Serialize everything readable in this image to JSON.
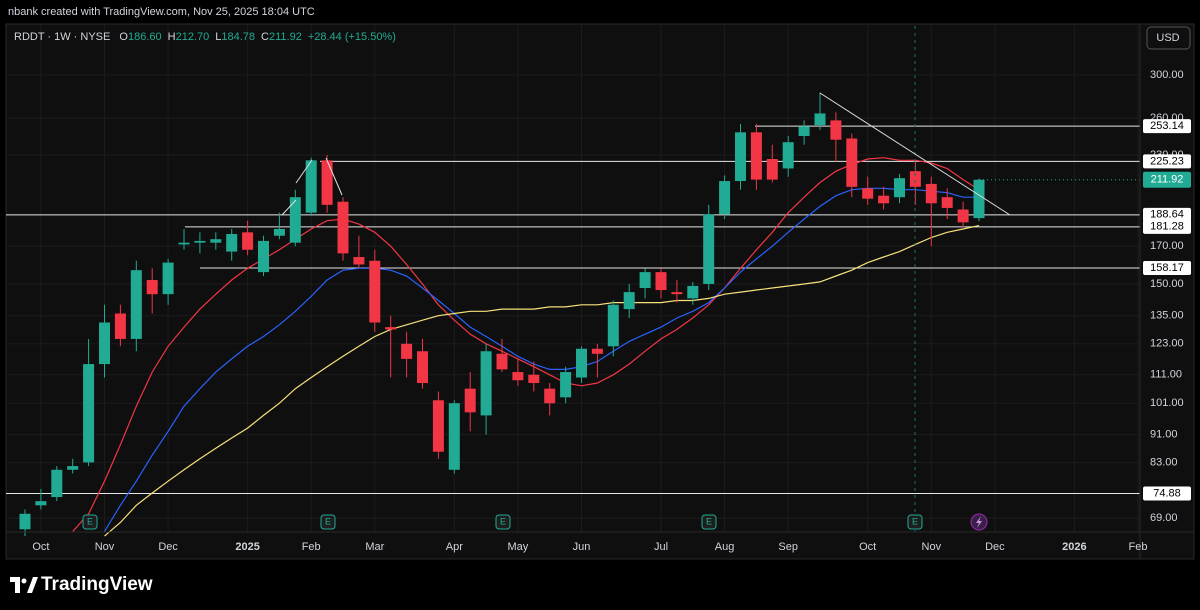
{
  "header": {
    "credit": "nbank created with TradingView.com, Nov 25, 2025 18:04 UTC"
  },
  "footer": {
    "brand": "TradingView"
  },
  "chart_data": {
    "type": "candlestick",
    "symbol": "RDDT · 1W · NYSE",
    "ohlc_legend": [
      {
        "label": "O",
        "value": "186.60"
      },
      {
        "label": "H",
        "value": "212.70"
      },
      {
        "label": "L",
        "value": "184.78"
      },
      {
        "label": "C",
        "value": "211.92"
      }
    ],
    "change": "+28.44 (+15.50%)",
    "currency": "USD",
    "log_scale": true,
    "grid": true,
    "up_color": "#22ab94",
    "down_color": "#f23645",
    "candles": {
      "open": [
        66.5,
        72,
        74,
        81,
        83,
        115,
        136,
        125,
        152,
        145,
        171,
        172,
        172,
        167,
        178,
        156,
        176,
        172,
        190,
        226,
        197,
        164,
        162,
        130,
        123,
        120,
        102,
        81,
        106,
        97,
        119,
        112,
        111,
        106,
        103,
        110,
        121,
        122,
        138,
        148,
        156,
        146,
        143,
        150,
        189,
        211,
        248,
        227,
        220,
        245,
        254,
        258,
        243,
        206,
        201,
        200,
        218,
        209,
        200,
        192,
        186.6
      ],
      "high": [
        71,
        76,
        82,
        84,
        125,
        140,
        140,
        162,
        158,
        163,
        180,
        178,
        178,
        180,
        185,
        176,
        190,
        205,
        228,
        230,
        200,
        176,
        168,
        135,
        128,
        125,
        105,
        102,
        112,
        123,
        125,
        117,
        116,
        108,
        114,
        122,
        123,
        142,
        150,
        158,
        158,
        152,
        151,
        195,
        215,
        255,
        255,
        238,
        245,
        258,
        283,
        265,
        247,
        214,
        207,
        216,
        225,
        214,
        206,
        197,
        212.7
      ],
      "low": [
        65,
        71,
        73,
        80,
        82,
        110,
        122,
        120,
        136,
        140,
        168,
        166,
        168,
        162,
        165,
        154,
        174,
        170,
        188,
        190,
        162,
        158,
        128,
        110,
        110,
        106,
        84,
        80,
        92,
        91,
        112,
        107,
        105,
        97,
        101,
        108,
        110,
        118,
        134,
        143,
        143,
        141,
        140,
        147,
        186,
        205,
        205,
        210,
        214,
        238,
        250,
        225,
        200,
        195,
        192,
        196,
        195,
        170,
        186,
        181,
        184.78
      ],
      "close": [
        70,
        73,
        81,
        82,
        115,
        132,
        125,
        157,
        145,
        161,
        172,
        173,
        174,
        177,
        168,
        173,
        180,
        200,
        226,
        195,
        166,
        160,
        132,
        129,
        117,
        108,
        86,
        101,
        98,
        120,
        113,
        109,
        108,
        101,
        112,
        121,
        119,
        140,
        146,
        156,
        147,
        145,
        149,
        189,
        211,
        248,
        212,
        212,
        240,
        253,
        264,
        242,
        207,
        199,
        196,
        213,
        207,
        196,
        193,
        184,
        211.92
      ]
    },
    "series": [
      {
        "color": "#f23645",
        "values": [
          null,
          null,
          null,
          66,
          70,
          78,
          88,
          100,
          112,
          122,
          130,
          138,
          145,
          152,
          158,
          163,
          168,
          174,
          180,
          185,
          186,
          183,
          178,
          170,
          160,
          150,
          140,
          133,
          127,
          123,
          120,
          117,
          114,
          111,
          108,
          107,
          108,
          111,
          115,
          120,
          125,
          129,
          134,
          140,
          148,
          158,
          168,
          178,
          190,
          200,
          210,
          218,
          223,
          227,
          228,
          226,
          226,
          224,
          220,
          212,
          205
        ]
      },
      {
        "color": "#2962ff",
        "values": [
          null,
          null,
          null,
          null,
          null,
          66,
          72,
          78,
          85,
          92,
          100,
          106,
          112,
          117,
          122,
          126,
          131,
          137,
          144,
          152,
          157,
          158,
          158,
          157,
          154,
          148,
          142,
          136,
          130,
          126,
          122,
          118,
          115,
          113,
          113,
          114,
          116,
          120,
          124,
          127,
          130,
          134,
          137,
          141,
          148,
          156,
          163,
          170,
          178,
          186,
          194,
          201,
          205,
          206,
          206,
          205,
          205,
          204,
          203,
          200,
          200
        ]
      },
      {
        "color": "#f7e17a",
        "values": [
          null,
          null,
          null,
          null,
          null,
          65,
          68,
          72,
          75,
          78,
          81,
          84,
          87,
          90,
          93,
          97,
          101,
          106,
          110,
          114,
          118,
          122,
          126,
          129,
          131,
          133,
          135,
          136,
          137,
          137,
          138,
          138,
          138,
          139,
          139,
          140,
          140,
          141,
          141,
          141,
          141,
          142,
          142,
          143,
          145,
          146,
          147,
          148,
          149,
          150,
          151,
          154,
          157,
          161,
          164,
          167,
          171,
          175,
          178,
          180,
          182
        ]
      }
    ],
    "levels": [
      253.14,
      225.23,
      188.64,
      181.28,
      158.17,
      74.88
    ],
    "last_price": 211.92,
    "events": [
      "E",
      "E",
      "E",
      "E",
      "E"
    ],
    "ylim": [
      65.9,
      354
    ],
    "yticks": [
      {
        "value": 300,
        "label": "300.00"
      },
      {
        "value": 260,
        "label": "260.00"
      },
      {
        "value": 230,
        "label": "230.00"
      },
      {
        "value": 170,
        "label": "170.00"
      },
      {
        "value": 150,
        "label": "150.00"
      },
      {
        "value": 135,
        "label": "135.00"
      },
      {
        "value": 123,
        "label": "123.00"
      },
      {
        "value": 111,
        "label": "111.00"
      },
      {
        "value": 101,
        "label": "101.00"
      },
      {
        "value": 91,
        "label": "91.00"
      },
      {
        "value": 83,
        "label": "83.00"
      },
      {
        "value": 69,
        "label": "69.00"
      }
    ],
    "xticks": [
      {
        "value": 1,
        "label": "Oct"
      },
      {
        "value": 5,
        "label": "Nov"
      },
      {
        "value": 9,
        "label": "Dec"
      },
      {
        "value": 14,
        "label": "2025"
      },
      {
        "value": 18,
        "label": "Feb"
      },
      {
        "value": 22,
        "label": "Mar"
      },
      {
        "value": 27,
        "label": "Apr"
      },
      {
        "value": 31,
        "label": "May"
      },
      {
        "value": 35,
        "label": "Jun"
      },
      {
        "value": 40,
        "label": "Jul"
      },
      {
        "value": 44,
        "label": "Aug"
      },
      {
        "value": 48,
        "label": "Sep"
      },
      {
        "value": 53,
        "label": "Oct"
      },
      {
        "value": 57,
        "label": "Nov"
      },
      {
        "value": 61,
        "label": "Dec"
      },
      {
        "value": 66,
        "label": "2026"
      },
      {
        "value": 70,
        "label": "Feb"
      }
    ]
  }
}
